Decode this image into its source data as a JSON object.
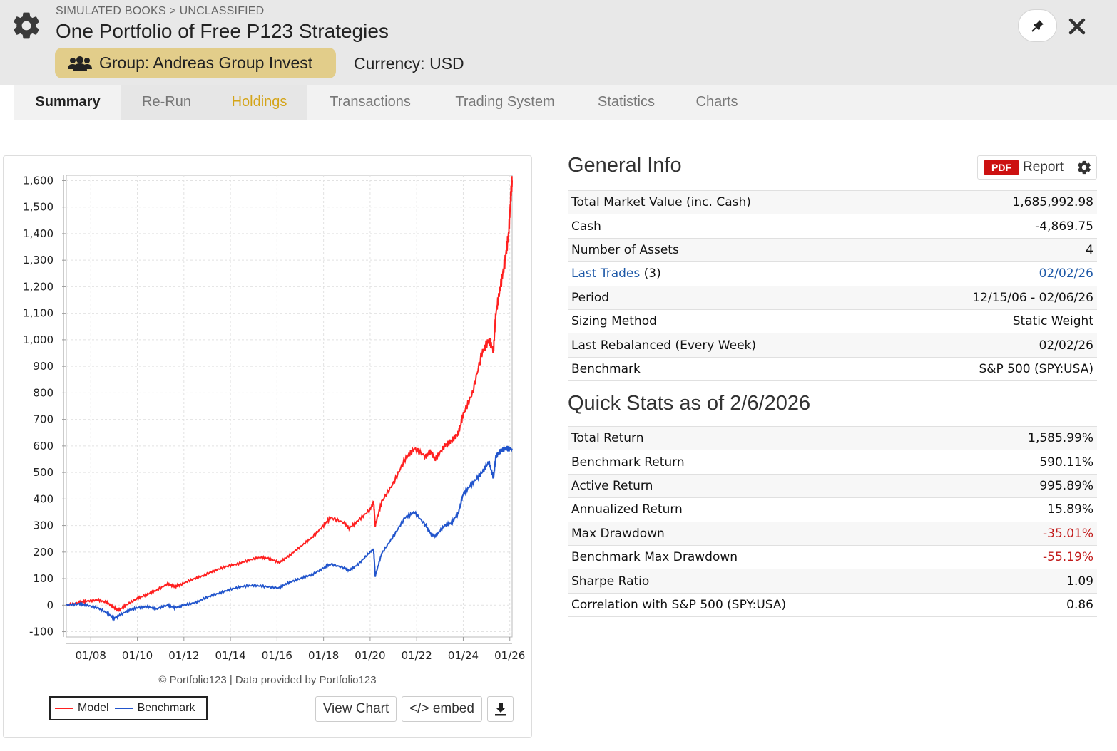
{
  "header": {
    "breadcrumb": "SIMULATED BOOKS > UNCLASSIFIED",
    "title": "One Portfolio of Free P123 Strategies",
    "group_label": "Group: Andreas Group Invest",
    "currency_label": "Currency: USD"
  },
  "tabs": [
    {
      "label": "Summary"
    },
    {
      "label": "Re-Run"
    },
    {
      "label": "Holdings"
    },
    {
      "label": "Transactions"
    },
    {
      "label": "Trading System"
    },
    {
      "label": "Statistics"
    },
    {
      "label": "Charts"
    }
  ],
  "chart": {
    "credit": "© Portfolio123 | Data provided by Portfolio123",
    "legend_model": "Model",
    "legend_benchmark": "Benchmark",
    "view_chart_label": "View Chart",
    "embed_label": "</> embed"
  },
  "chart_data": {
    "type": "line",
    "ylim": [
      -120,
      1620
    ],
    "yticks": [
      "1,600",
      "1,500",
      "1,400",
      "1,300",
      "1,200",
      "1,100",
      "1,000",
      "900",
      "800",
      "700",
      "600",
      "500",
      "400",
      "300",
      "200",
      "100",
      "0",
      "-100"
    ],
    "xticks": [
      "01/08",
      "01/10",
      "01/12",
      "01/14",
      "01/16",
      "01/18",
      "01/20",
      "01/22",
      "01/24",
      "01/26"
    ],
    "xlim": [
      2006.95,
      2026.1
    ],
    "grid": true,
    "legend": "bottom-left",
    "series": [
      {
        "name": "Model",
        "color": "#ff2020",
        "x": [
          2006.96,
          2007.5,
          2007.8,
          2008.3,
          2008.7,
          2009.0,
          2009.2,
          2009.5,
          2010.0,
          2010.4,
          2010.8,
          2011.3,
          2011.6,
          2011.8,
          2012.3,
          2012.8,
          2013.3,
          2013.8,
          2014.3,
          2014.8,
          2015.3,
          2015.7,
          2016.1,
          2016.5,
          2017.0,
          2017.5,
          2018.0,
          2018.3,
          2018.9,
          2019.1,
          2019.5,
          2020.0,
          2020.15,
          2020.22,
          2020.5,
          2021.0,
          2021.5,
          2021.9,
          2022.4,
          2022.6,
          2022.8,
          2023.2,
          2023.5,
          2023.8,
          2024.0,
          2024.4,
          2024.8,
          2025.1,
          2025.3,
          2025.4,
          2025.6,
          2025.8,
          2025.95,
          2026.05,
          2026.1
        ],
        "y": [
          0,
          10,
          15,
          20,
          10,
          -10,
          -20,
          0,
          25,
          40,
          55,
          80,
          70,
          75,
          95,
          110,
          130,
          145,
          155,
          170,
          180,
          175,
          160,
          185,
          220,
          255,
          300,
          330,
          310,
          290,
          320,
          360,
          390,
          300,
          390,
          460,
          550,
          590,
          560,
          580,
          550,
          600,
          620,
          650,
          720,
          800,
          950,
          1000,
          960,
          1100,
          1200,
          1300,
          1400,
          1550,
          1600
        ]
      },
      {
        "name": "Benchmark",
        "color": "#2255cc",
        "x": [
          2006.96,
          2007.5,
          2007.8,
          2008.3,
          2008.7,
          2009.0,
          2009.2,
          2009.6,
          2010.0,
          2010.4,
          2010.8,
          2011.3,
          2011.6,
          2012.0,
          2012.5,
          2013.0,
          2013.5,
          2014.0,
          2014.5,
          2015.0,
          2015.5,
          2016.1,
          2016.5,
          2017.0,
          2017.5,
          2018.0,
          2018.3,
          2018.9,
          2019.1,
          2019.5,
          2020.0,
          2020.15,
          2020.22,
          2020.5,
          2021.0,
          2021.5,
          2021.9,
          2022.4,
          2022.6,
          2022.8,
          2023.2,
          2023.5,
          2023.8,
          2024.0,
          2024.4,
          2024.8,
          2025.1,
          2025.3,
          2025.4,
          2025.6,
          2025.8,
          2026.1
        ],
        "y": [
          0,
          5,
          0,
          -10,
          -30,
          -50,
          -40,
          -20,
          -10,
          -5,
          -15,
          0,
          -10,
          0,
          10,
          30,
          45,
          60,
          70,
          75,
          70,
          65,
          85,
          100,
          115,
          140,
          155,
          140,
          130,
          155,
          200,
          210,
          110,
          195,
          260,
          330,
          350,
          300,
          270,
          260,
          300,
          310,
          350,
          420,
          460,
          500,
          540,
          480,
          560,
          580,
          590,
          590
        ]
      }
    ]
  },
  "general_info": {
    "title": "General Info",
    "pdf_badge": "PDF",
    "report_label": "Report",
    "rows": [
      {
        "label": "Total Market Value (inc. Cash)",
        "value": "1,685,992.98"
      },
      {
        "label": "Cash",
        "value": "-4,869.75"
      },
      {
        "label": "Number of Assets",
        "value": "4"
      },
      {
        "label": "Last Trades",
        "label_suffix": " (3)",
        "value": "02/02/26"
      },
      {
        "label": "Period",
        "value": "12/15/06 - 02/06/26"
      },
      {
        "label": "Sizing Method",
        "value": "Static Weight"
      },
      {
        "label": "Last Rebalanced (Every Week)",
        "value": "02/02/26"
      },
      {
        "label": "Benchmark",
        "value": "S&P 500 (SPY:USA)"
      }
    ]
  },
  "quick_stats": {
    "title": "Quick Stats as of 2/6/2026",
    "rows": [
      {
        "label": "Total Return",
        "value": "1,585.99%"
      },
      {
        "label": "Benchmark Return",
        "value": "590.11%"
      },
      {
        "label": "Active Return",
        "value": "995.89%"
      },
      {
        "label": "Annualized Return",
        "value": "15.89%"
      },
      {
        "label": "Max Drawdown",
        "value": "-35.01%"
      },
      {
        "label": "Benchmark Max Drawdown",
        "value": "-55.19%"
      },
      {
        "label": "Sharpe Ratio",
        "value": "1.09"
      },
      {
        "label": "Correlation with S&P 500 (SPY:USA)",
        "value": "0.86"
      }
    ]
  },
  "colors": {
    "accent_tab": "#d4a418",
    "group_badge": "#e2cd8a",
    "negative": "#c21a1a",
    "link": "#1f5aa8"
  },
  "icons": {
    "settings": "gear-icon",
    "group": "users-icon",
    "pin": "pin-icon",
    "close": "close-icon",
    "download": "download-icon"
  }
}
